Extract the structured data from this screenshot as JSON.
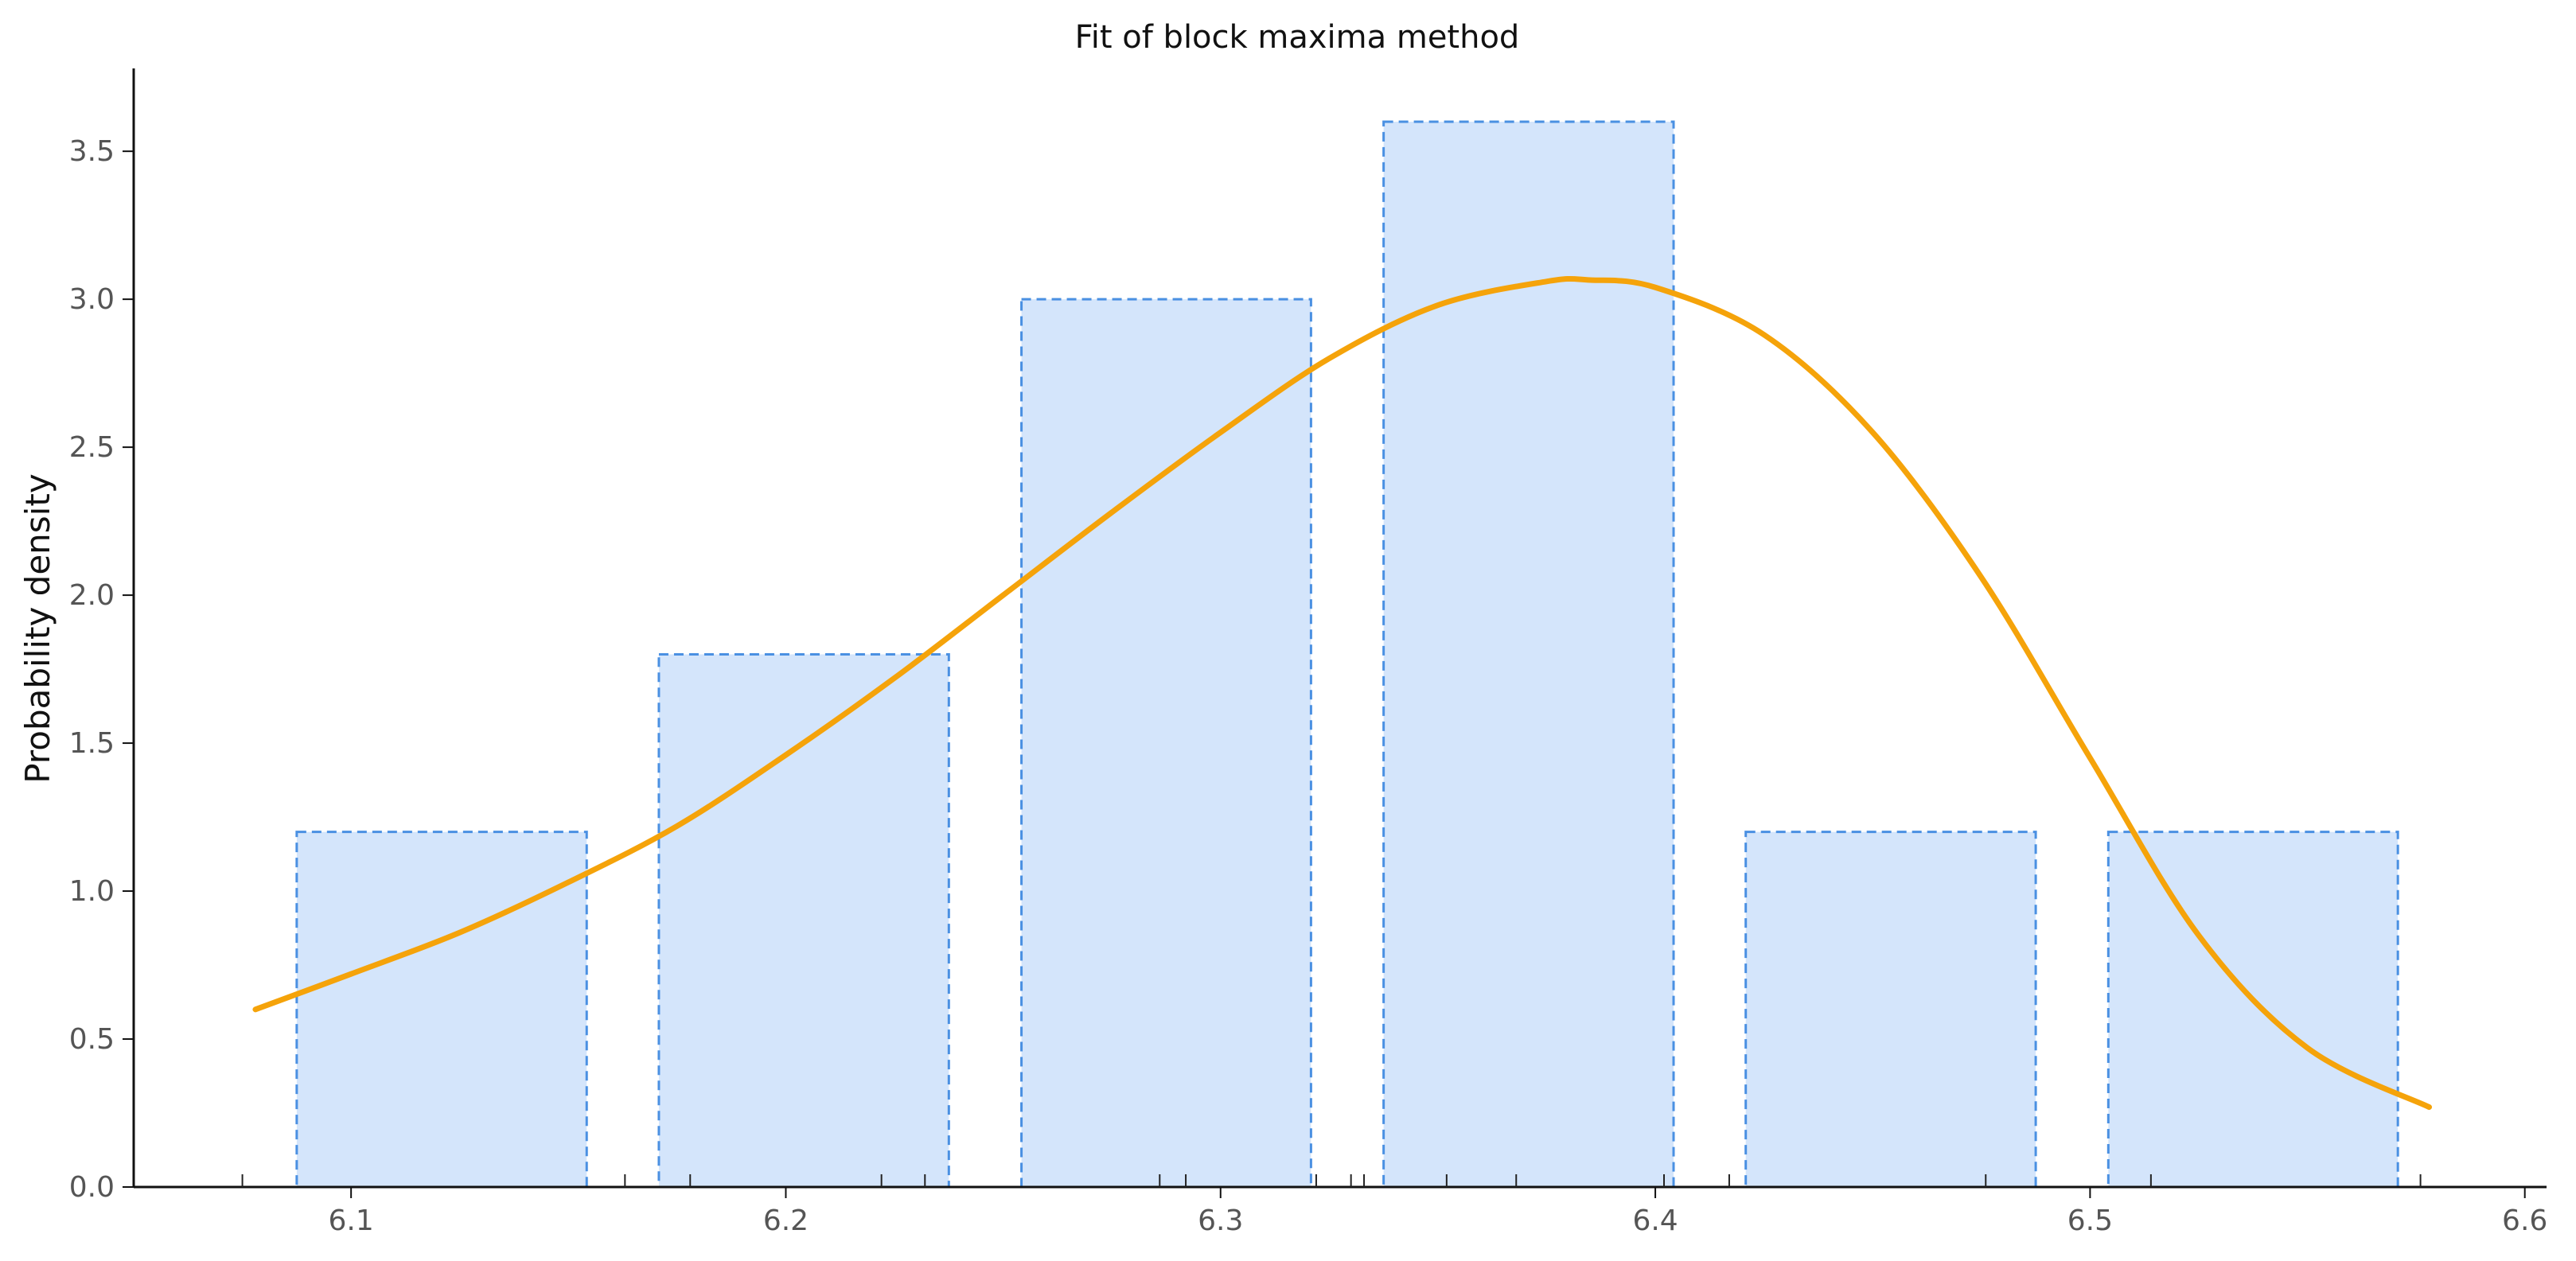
{
  "chart_data": {
    "type": "bar",
    "title": "Fit of block maxima method",
    "xlabel": "",
    "ylabel": "Probability density",
    "xlim": [
      6.05,
      6.605
    ],
    "ylim": [
      0.0,
      3.78
    ],
    "x_ticks": [
      "6.1",
      "6.2",
      "6.3",
      "6.4",
      "6.5",
      "6.6"
    ],
    "y_ticks": [
      "0.0",
      "0.5",
      "1.0",
      "1.5",
      "2.0",
      "2.5",
      "3.0",
      "3.5"
    ],
    "grid": false,
    "bar_fill_color": "#d4e5fb",
    "bar_edge_color": "#4a90e2",
    "bar_edge_style": "dashed",
    "bins": [
      {
        "x0": 6.0875,
        "x1": 6.1542,
        "value": 1.2
      },
      {
        "x0": 6.1708,
        "x1": 6.2375,
        "value": 1.8
      },
      {
        "x0": 6.2542,
        "x1": 6.3208,
        "value": 3.0
      },
      {
        "x0": 6.3375,
        "x1": 6.4042,
        "value": 3.6
      },
      {
        "x0": 6.4208,
        "x1": 6.4875,
        "value": 1.2
      },
      {
        "x0": 6.5042,
        "x1": 6.5708,
        "value": 1.2
      }
    ],
    "rug_x": [
      6.075,
      6.163,
      6.178,
      6.222,
      6.232,
      6.286,
      6.292,
      6.322,
      6.33,
      6.333,
      6.352,
      6.368,
      6.402,
      6.417,
      6.476,
      6.514,
      6.576
    ],
    "fit_curve": {
      "color": "#f5a30a",
      "x": [
        6.078,
        6.1,
        6.125,
        6.15,
        6.175,
        6.2,
        6.225,
        6.25,
        6.275,
        6.3,
        6.325,
        6.35,
        6.375,
        6.385,
        6.4,
        6.425,
        6.45,
        6.475,
        6.5,
        6.525,
        6.55,
        6.578
      ],
      "y": [
        0.6,
        0.72,
        0.86,
        1.03,
        1.22,
        1.46,
        1.72,
        2.0,
        2.28,
        2.55,
        2.8,
        2.98,
        3.06,
        3.065,
        3.04,
        2.88,
        2.55,
        2.06,
        1.45,
        0.85,
        0.47,
        0.27
      ]
    }
  }
}
